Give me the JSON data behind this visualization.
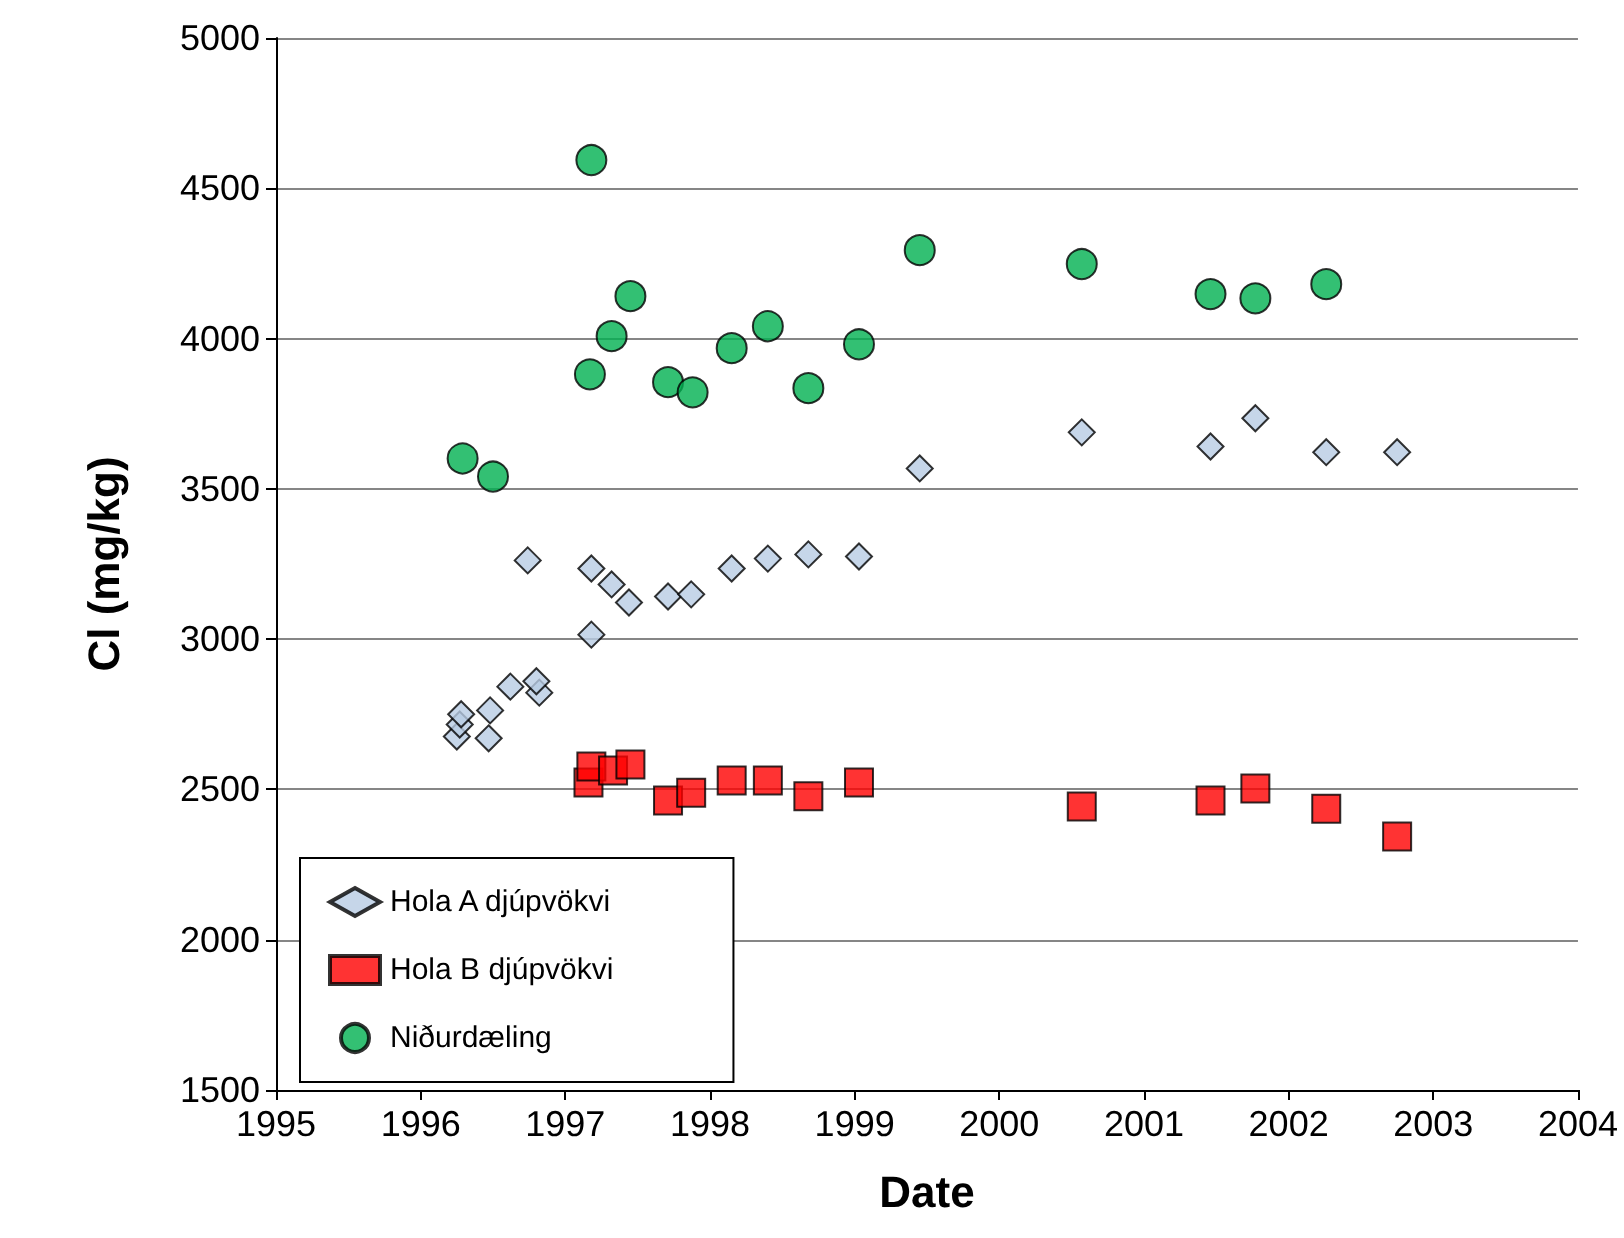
{
  "chart_data": {
    "type": "scatter",
    "xlabel": "Date",
    "ylabel": "Cl (mg/kg)",
    "xlim": [
      1995,
      2004
    ],
    "xticks": [
      1995,
      1996,
      1997,
      1998,
      1999,
      2000,
      2001,
      2002,
      2003,
      2004
    ],
    "ylim": [
      1500,
      5000
    ],
    "yticks": [
      1500,
      2000,
      2500,
      3000,
      3500,
      4000,
      4500,
      5000
    ],
    "grid": "y",
    "legend": "bottom left",
    "series": [
      {
        "name": "Hola A djúpvökvi",
        "color": "#b8cce4",
        "marker": "diamond",
        "x": [
          1996.25,
          1996.27,
          1996.28,
          1996.47,
          1996.48,
          1996.62,
          1996.74,
          1996.82,
          1996.8,
          1997.18,
          1997.18,
          1997.32,
          1997.44,
          1997.71,
          1997.87,
          1998.15,
          1998.4,
          1998.68,
          1999.03,
          1999.45,
          2000.57,
          2001.46,
          2001.77,
          2002.26,
          2002.75
        ],
        "values": [
          2676,
          2716,
          2750,
          2670,
          2763,
          2842,
          3262,
          2822,
          2860,
          3015,
          3235,
          3182,
          3122,
          3142,
          3149,
          3235,
          3268,
          3282,
          3275,
          3568,
          3688,
          3641,
          3735,
          3622,
          3622
        ]
      },
      {
        "name": "Hola B djúpvökvi",
        "color": "#ff0000",
        "marker": "square",
        "x": [
          1997.16,
          1997.18,
          1997.33,
          1997.45,
          1997.71,
          1997.87,
          1998.15,
          1998.4,
          1998.68,
          1999.03,
          2000.57,
          2001.46,
          2001.77,
          2002.26,
          2002.75
        ],
        "values": [
          2523,
          2576,
          2563,
          2583,
          2463,
          2489,
          2530,
          2530,
          2477,
          2523,
          2443,
          2463,
          2503,
          2436,
          2343
        ]
      },
      {
        "name": "Niðurdæling",
        "color": "#00b050",
        "marker": "circle",
        "x": [
          1996.29,
          1996.5,
          1997.18,
          1997.17,
          1997.32,
          1997.45,
          1997.71,
          1997.88,
          1998.15,
          1998.4,
          1998.68,
          1999.03,
          1999.45,
          2000.57,
          2001.46,
          2001.77,
          2002.26
        ],
        "values": [
          3601,
          3541,
          4594,
          3881,
          4008,
          4141,
          3855,
          3821,
          3968,
          4041,
          3835,
          3981,
          4294,
          4248,
          4148,
          4134,
          4181
        ]
      }
    ]
  }
}
